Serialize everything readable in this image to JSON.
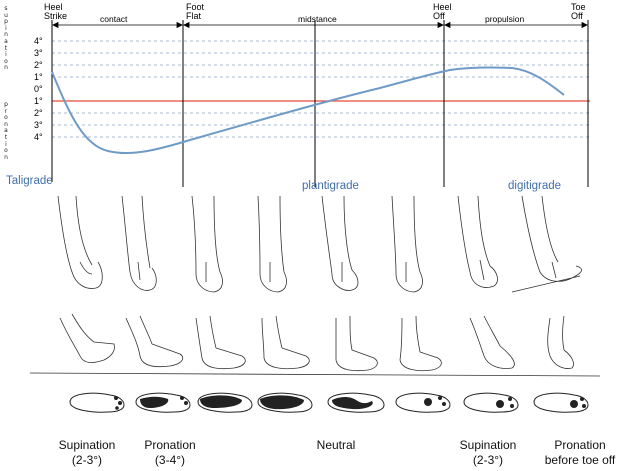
{
  "axis_side_label": {
    "supination": "Supination",
    "pronation": "Pronation"
  },
  "phase_events": {
    "heel_strike": [
      "Heel",
      "Strike"
    ],
    "foot_flat": [
      "Foot",
      "Flat"
    ],
    "heel_off": [
      "Heel",
      "Off"
    ],
    "toe_off": [
      "Toe",
      "Off"
    ]
  },
  "phases": {
    "contact": "contact",
    "midstance": "midstance",
    "propulsion": "propulsion"
  },
  "gait_modes": {
    "taligrade": "Taligrade",
    "plantigrade": "plantigrade",
    "digitigrade": "digitigrade"
  },
  "y_ticks": [
    "4°",
    "3°",
    "2°",
    "1°",
    "0°",
    "1°",
    "2°",
    "3°",
    "4°"
  ],
  "foot_states": [
    {
      "line1": "Supination",
      "line2": "(2-3°)"
    },
    {
      "line1": "Pronation",
      "line2": "(3-4°)"
    },
    {
      "line1": "Neutral",
      "line2": ""
    },
    {
      "line1": "Supination",
      "line2": "(2-3°)"
    },
    {
      "line1": "Pronation",
      "line2": "before toe off"
    }
  ],
  "colors": {
    "curve": "#6f9bc7",
    "zero_line": "#e84a3c",
    "grid": "#8fa7c4",
    "mode_text": "#3f6fb0"
  }
}
